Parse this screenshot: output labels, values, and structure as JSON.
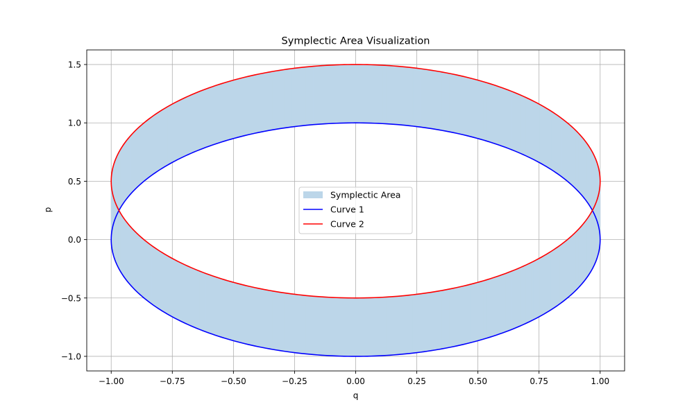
{
  "chart_data": {
    "type": "line",
    "title": "Symplectic Area Visualization",
    "xlabel": "q",
    "ylabel": "p",
    "xlim": [
      -1.1,
      1.1
    ],
    "ylim": [
      -1.125,
      1.625
    ],
    "xticks": [
      -1.0,
      -0.75,
      -0.5,
      -0.25,
      0.0,
      0.25,
      0.5,
      0.75,
      1.0
    ],
    "xtick_labels": [
      "−1.00",
      "−0.75",
      "−0.50",
      "−0.25",
      "0.00",
      "0.25",
      "0.50",
      "0.75",
      "1.00"
    ],
    "yticks": [
      -1.0,
      -0.5,
      0.0,
      0.5,
      1.0,
      1.5
    ],
    "ytick_labels": [
      "−1.0",
      "−0.5",
      "0.0",
      "0.5",
      "1.0",
      "1.5"
    ],
    "grid": true,
    "legend_placement": "center",
    "series": [
      {
        "name": "Symplectic Area",
        "kind": "fill_between",
        "color": "#bcd6e9",
        "between": [
          "Curve 1",
          "Curve 2"
        ]
      },
      {
        "name": "Curve 1",
        "kind": "parametric",
        "equation": "q = cos(t), p = sin(t)",
        "center": [
          0.0,
          0.0
        ],
        "radius_q": 1.0,
        "radius_p": 1.0,
        "color": "#0000ff"
      },
      {
        "name": "Curve 2",
        "kind": "parametric",
        "equation": "q = cos(t), p = sin(t) + 0.5",
        "center": [
          0.0,
          0.5
        ],
        "radius_q": 1.0,
        "radius_p": 1.0,
        "color": "#ff0000"
      }
    ],
    "legend": [
      "Symplectic Area",
      "Curve 1",
      "Curve 2"
    ]
  }
}
